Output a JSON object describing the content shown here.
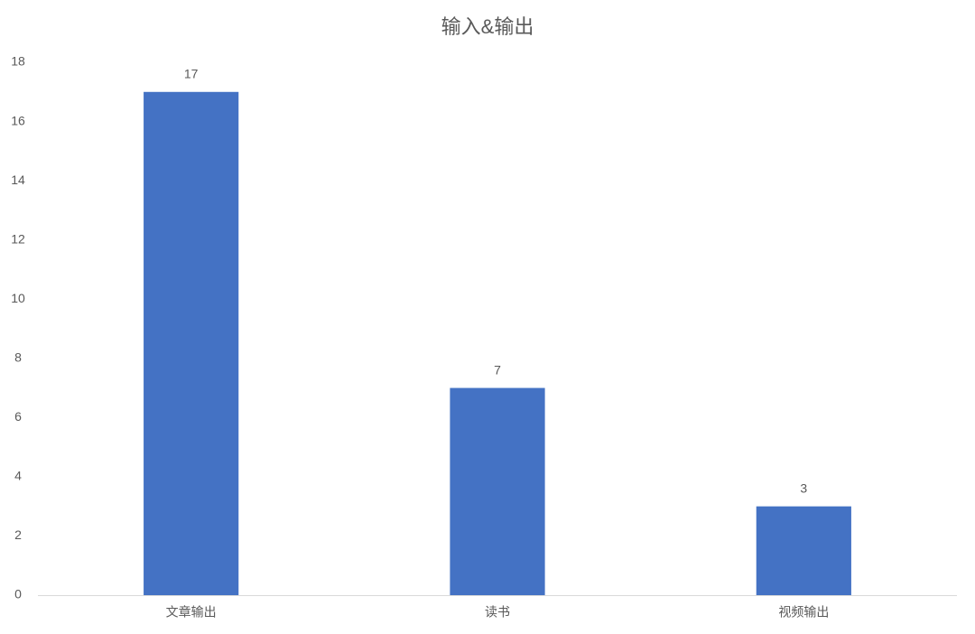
{
  "chart_data": {
    "type": "bar",
    "title": "输入&输出",
    "categories": [
      "文章输出",
      "读书",
      "视频输出"
    ],
    "values": [
      17,
      7,
      3
    ],
    "color": "#4472c4",
    "ylim": [
      0,
      18
    ],
    "yticks": [
      0,
      2,
      4,
      6,
      8,
      10,
      12,
      14,
      16,
      18
    ],
    "grid": false
  }
}
